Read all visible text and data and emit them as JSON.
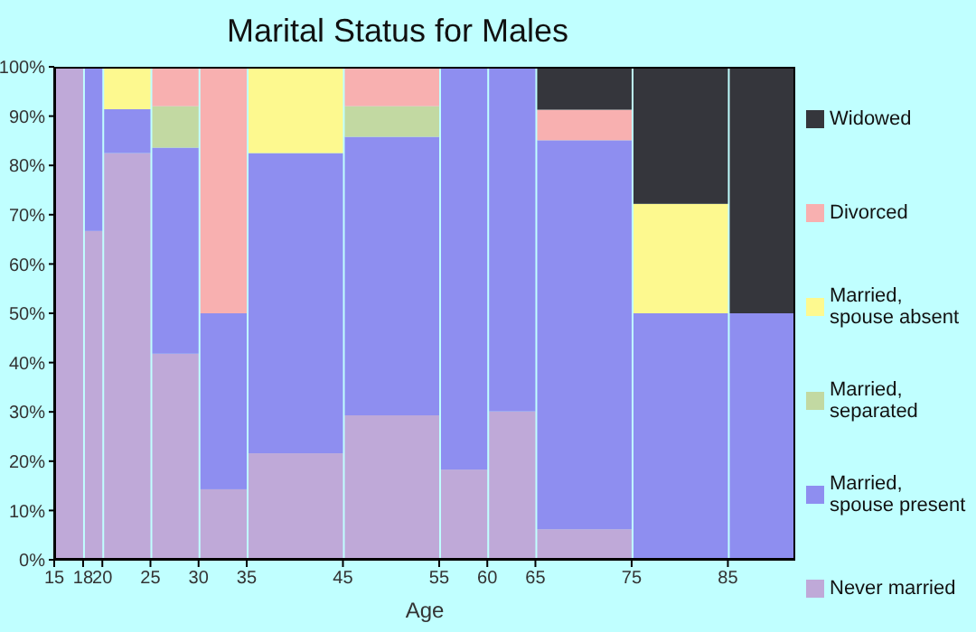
{
  "chart_data": {
    "type": "bar",
    "title": "Marital Status for Males",
    "xlabel": "Age",
    "stacked": true,
    "legend": "right",
    "grid": false,
    "x": [
      16.5,
      19,
      22.5,
      27.5,
      32.5,
      40,
      50,
      57.5,
      62.5,
      70,
      80,
      88.5
    ],
    "xlim": [
      15,
      92
    ],
    "xticks": [
      15,
      18,
      20,
      25,
      30,
      35,
      45,
      55,
      60,
      65,
      75,
      85
    ],
    "ylim": [
      0,
      100
    ],
    "yticks": [
      {
        "value": 0,
        "label": "0%"
      },
      {
        "value": 10,
        "label": "10%"
      },
      {
        "value": 20,
        "label": "20%"
      },
      {
        "value": 30,
        "label": "30%"
      },
      {
        "value": 40,
        "label": "40%"
      },
      {
        "value": 50,
        "label": "50%"
      },
      {
        "value": 60,
        "label": "60%"
      },
      {
        "value": 70,
        "label": "70%"
      },
      {
        "value": 80,
        "label": "80%"
      },
      {
        "value": 90,
        "label": "90%"
      },
      {
        "value": 100,
        "label": "100%"
      }
    ],
    "series": [
      {
        "name": "Never married",
        "color": "#bfa9d8",
        "values": [
          100,
          66.7,
          82.5,
          41.8,
          14.3,
          21.6,
          29.3,
          18.3,
          30.1,
          6.2,
          null,
          null
        ]
      },
      {
        "name": "Married, spouse present",
        "color": "#8e8ef0",
        "values": [
          null,
          33.3,
          8.9,
          41.8,
          35.7,
          60.9,
          56.5,
          81.7,
          69.9,
          78.9,
          50,
          50
        ]
      },
      {
        "name": "Married, separated",
        "color": "#c2d9a2",
        "values": [
          null,
          null,
          null,
          8.4,
          null,
          null,
          6.2,
          null,
          null,
          null,
          null,
          null
        ]
      },
      {
        "name": "Married, spouse absent",
        "color": "#fdf98f",
        "values": [
          null,
          null,
          8.6,
          null,
          null,
          17.5,
          null,
          null,
          null,
          null,
          22.2,
          null
        ]
      },
      {
        "name": "Divorced",
        "color": "#f8b0b0",
        "values": [
          null,
          null,
          null,
          8,
          50,
          null,
          8,
          null,
          null,
          6.2,
          null,
          null
        ]
      },
      {
        "name": "Widowed",
        "color": "#35363c",
        "values": [
          null,
          null,
          null,
          null,
          null,
          null,
          null,
          null,
          null,
          8.7,
          27.8,
          50
        ]
      }
    ]
  }
}
